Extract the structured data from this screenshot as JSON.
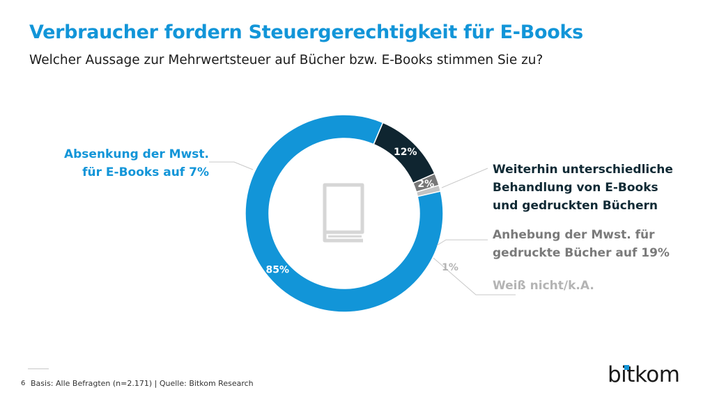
{
  "header": {
    "title": "Verbraucher fordern Steuergerechtigkeit für E-Books",
    "subtitle": "Welcher Aussage zur Mehrwertsteuer auf Bücher bzw. E-Books stimmen Sie zu?"
  },
  "chart_data": {
    "type": "pie",
    "variant": "donut",
    "title": "",
    "center_icon": "book-icon",
    "slices": [
      {
        "label_lines": [
          "Absenkung der Mwst.",
          "für E-Books auf 7%"
        ],
        "value": 85,
        "value_label": "85%",
        "color": "#1295d8",
        "label_color": "#1295d8"
      },
      {
        "label_lines": [
          "Weiterhin unterschiedliche",
          "Behandlung von E-Books",
          "und gedruckten Büchern"
        ],
        "value": 12,
        "value_label": "12%",
        "color": "#0f2530",
        "label_color": "#102a35"
      },
      {
        "label_lines": [
          "Anhebung der Mwst. für",
          "gedruckte Bücher auf 19%"
        ],
        "value": 2,
        "value_label": "2%",
        "color": "#777777",
        "label_color": "#7a7a7a"
      },
      {
        "label_lines": [
          "Weiß nicht/k.A."
        ],
        "value": 1,
        "value_label": "1%",
        "color": "#c3c3c3",
        "label_color": "#b4b4b4"
      }
    ]
  },
  "footer": {
    "page_number": "6",
    "source": "Basis: Alle Befragten (n=2.171) | Quelle: Bitkom Research",
    "logo": "bitkom"
  }
}
